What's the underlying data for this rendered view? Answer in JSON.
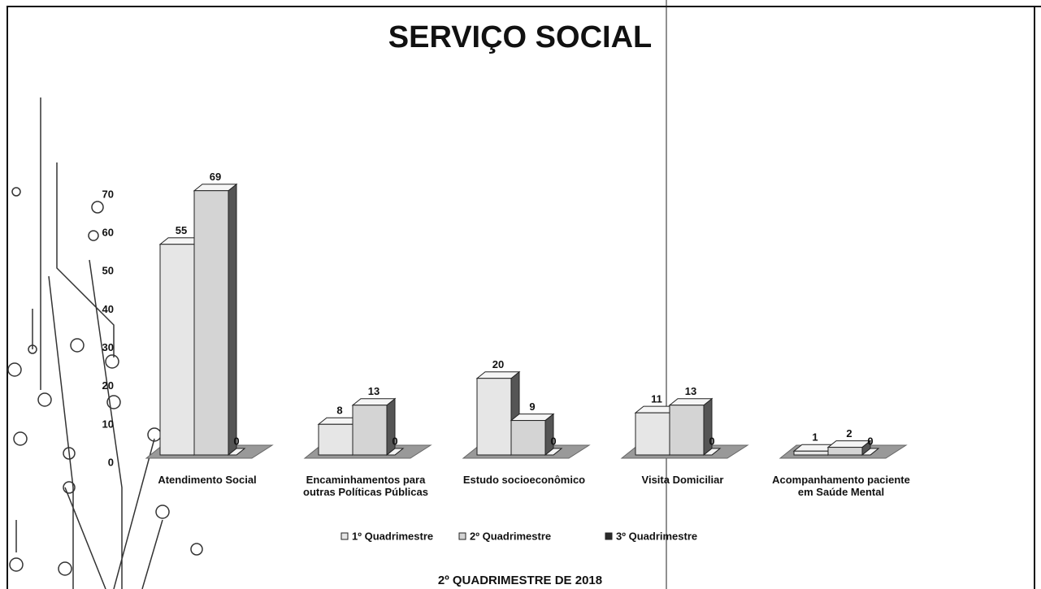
{
  "chart_data": {
    "type": "bar",
    "title": "SERVIÇO SOCIAL",
    "subtitle": "2º QUADRIMESTRE DE 2018",
    "categories": [
      "Atendimento Social",
      "Encaminhamentos para outras Políticas Públicas",
      "Estudo socioeconômico",
      "Visita Domiciliar",
      "Acompanhamento paciente em Saúde Mental"
    ],
    "series": [
      {
        "name": "1º Quadrimestre",
        "color": "#e6e6e6",
        "values": [
          55,
          8,
          20,
          11,
          1
        ]
      },
      {
        "name": "2º Quadrimestre",
        "color": "#d4d4d4",
        "values": [
          69,
          13,
          9,
          13,
          2
        ]
      },
      {
        "name": "3º Quadrimestre",
        "color": "#2b2b2b",
        "values": [
          0,
          0,
          0,
          0,
          0
        ]
      }
    ],
    "ylim": [
      0,
      70
    ],
    "yticks": [
      0,
      10,
      20,
      30,
      40,
      50,
      60,
      70
    ],
    "grid": false,
    "legend": "bottom"
  }
}
